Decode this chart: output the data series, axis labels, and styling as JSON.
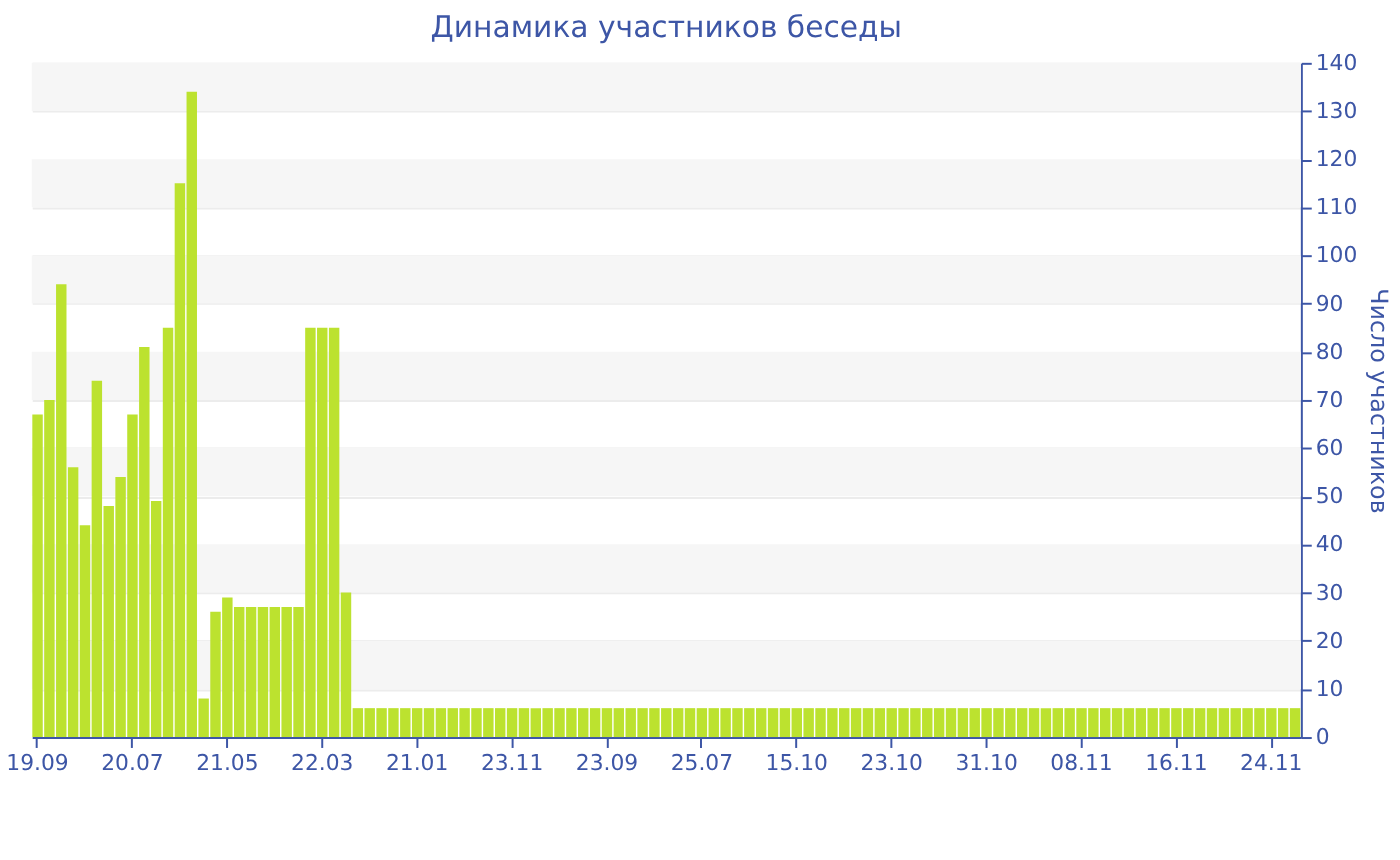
{
  "chart_data": {
    "type": "bar",
    "title": "Динамика участников беседы",
    "ylabel": "Число участников",
    "categories": [
      "19.09",
      null,
      null,
      null,
      null,
      null,
      null,
      null,
      "20.07",
      null,
      null,
      null,
      null,
      null,
      null,
      null,
      "21.05",
      null,
      null,
      null,
      null,
      null,
      null,
      null,
      "22.03",
      null,
      null,
      null,
      null,
      null,
      null,
      null,
      "21.01",
      null,
      null,
      null,
      null,
      null,
      null,
      null,
      "23.11",
      null,
      null,
      null,
      null,
      null,
      null,
      null,
      "23.09",
      null,
      null,
      null,
      null,
      null,
      null,
      null,
      "25.07",
      null,
      null,
      null,
      null,
      null,
      null,
      null,
      "15.10",
      null,
      null,
      null,
      null,
      null,
      null,
      null,
      "23.10",
      null,
      null,
      null,
      null,
      null,
      null,
      null,
      "31.10",
      null,
      null,
      null,
      null,
      null,
      null,
      null,
      "08.11",
      null,
      null,
      null,
      null,
      null,
      null,
      null,
      "16.11",
      null,
      null,
      null,
      null,
      null,
      null,
      null,
      "24.11",
      null,
      null
    ],
    "values": [
      67,
      70,
      94,
      56,
      44,
      74,
      48,
      54,
      67,
      81,
      49,
      85,
      115,
      134,
      8,
      26,
      29,
      27,
      27,
      27,
      27,
      27,
      27,
      85,
      85,
      85,
      30,
      6,
      6,
      6,
      6,
      6,
      6,
      6,
      6,
      6,
      6,
      6,
      6,
      6,
      6,
      6,
      6,
      6,
      6,
      6,
      6,
      6,
      6,
      6,
      6,
      6,
      6,
      6,
      6,
      6,
      6,
      6,
      6,
      6,
      6,
      6,
      6,
      6,
      6,
      6,
      6,
      6,
      6,
      6,
      6,
      6,
      6,
      6,
      6,
      6,
      6,
      6,
      6,
      6,
      6,
      6,
      6,
      6,
      6,
      6,
      6,
      6,
      6,
      6,
      6,
      6,
      6,
      6,
      6,
      6,
      6,
      6,
      6,
      6,
      6,
      6,
      6,
      6,
      6,
      6,
      6
    ],
    "color": "#bce22f",
    "ylim": [
      0,
      140
    ],
    "yticks": [
      0,
      10,
      20,
      30,
      40,
      50,
      60,
      70,
      80,
      90,
      100,
      110,
      120,
      130,
      140
    ],
    "grid": true
  }
}
